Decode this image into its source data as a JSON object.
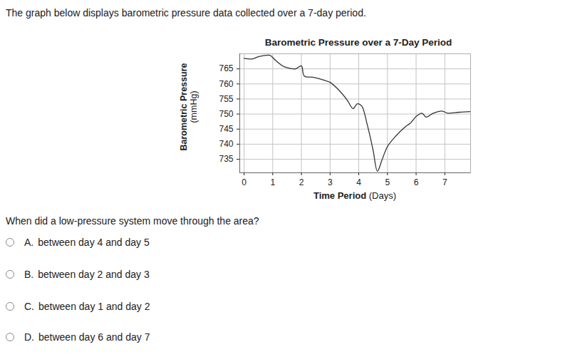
{
  "intro": "The graph below displays barometric pressure data collected over a 7-day period.",
  "chart_data": {
    "type": "line",
    "title": "Barometric Pressure over a 7-Day Period",
    "x_label": "Time Period (Days)",
    "y_label": "Barometric Pressure (mmHg)",
    "x": [
      0,
      0.3,
      0.5,
      0.9,
      1.1,
      1.4,
      1.6,
      1.8,
      2.0,
      2.1,
      2.4,
      2.8,
      3.0,
      3.3,
      3.6,
      3.8,
      3.95,
      4.1,
      4.3,
      4.5,
      4.65,
      4.8,
      5.0,
      5.3,
      5.6,
      5.8,
      6.0,
      6.2,
      6.35,
      6.6,
      6.9,
      7.1,
      7.5,
      7.9
    ],
    "values": [
      768.5,
      768.3,
      769,
      769.5,
      767.8,
      765.7,
      765.2,
      765,
      766,
      762.6,
      762.2,
      761.2,
      760.5,
      758,
      754.6,
      751.8,
      753.4,
      752.7,
      746.3,
      738,
      731,
      734.5,
      739.2,
      742.8,
      745.6,
      747,
      749.2,
      750.3,
      749,
      750.3,
      751,
      750.3,
      750.6,
      750.8
    ],
    "color": "#333333",
    "xlim": [
      -0.15,
      7.9
    ],
    "xticks": [
      0,
      1,
      2,
      3,
      4,
      5,
      6,
      7
    ],
    "ylim": [
      730.5,
      770
    ],
    "yticks": [
      735,
      740,
      745,
      750,
      755,
      760,
      765
    ],
    "grid": true
  },
  "question": "When did a low-pressure system move through the area?",
  "options": [
    {
      "letter": "A.",
      "text": "between day 4 and day 5"
    },
    {
      "letter": "B.",
      "text": "between day 2 and day 3"
    },
    {
      "letter": "C.",
      "text": "between day 1 and day 2"
    },
    {
      "letter": "D.",
      "text": "between day 6 and day 7"
    }
  ]
}
